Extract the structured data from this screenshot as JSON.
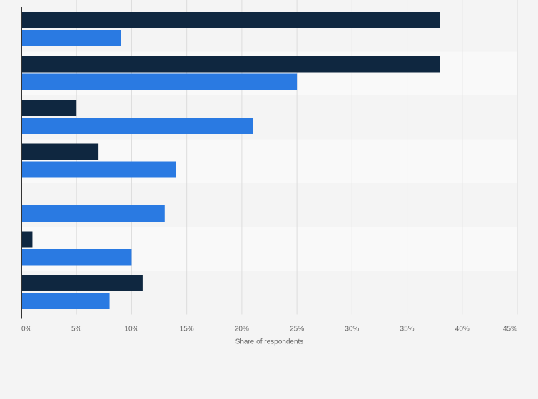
{
  "chart_data": {
    "type": "bar",
    "orientation": "horizontal",
    "title": "",
    "xlabel": "Share of respondents",
    "ylabel": "",
    "xlim": [
      0,
      45
    ],
    "x_ticks": [
      "0%",
      "5%",
      "10%",
      "15%",
      "20%",
      "25%",
      "30%",
      "35%",
      "40%",
      "45%"
    ],
    "categories": [
      "",
      "",
      "",
      "",
      "",
      "",
      ""
    ],
    "grid": "vertical",
    "legend": "none",
    "series": [
      {
        "color": "#0f2740",
        "values": [
          38,
          38,
          5,
          7,
          0,
          1,
          11
        ]
      },
      {
        "color": "#2a7ae2",
        "values": [
          9,
          25,
          21,
          14,
          13,
          10,
          8
        ]
      }
    ],
    "band_colors": [
      "#f4f4f4",
      "#f9f9f9"
    ],
    "grid_color": "#dddddd",
    "axis_color": "#333333"
  }
}
